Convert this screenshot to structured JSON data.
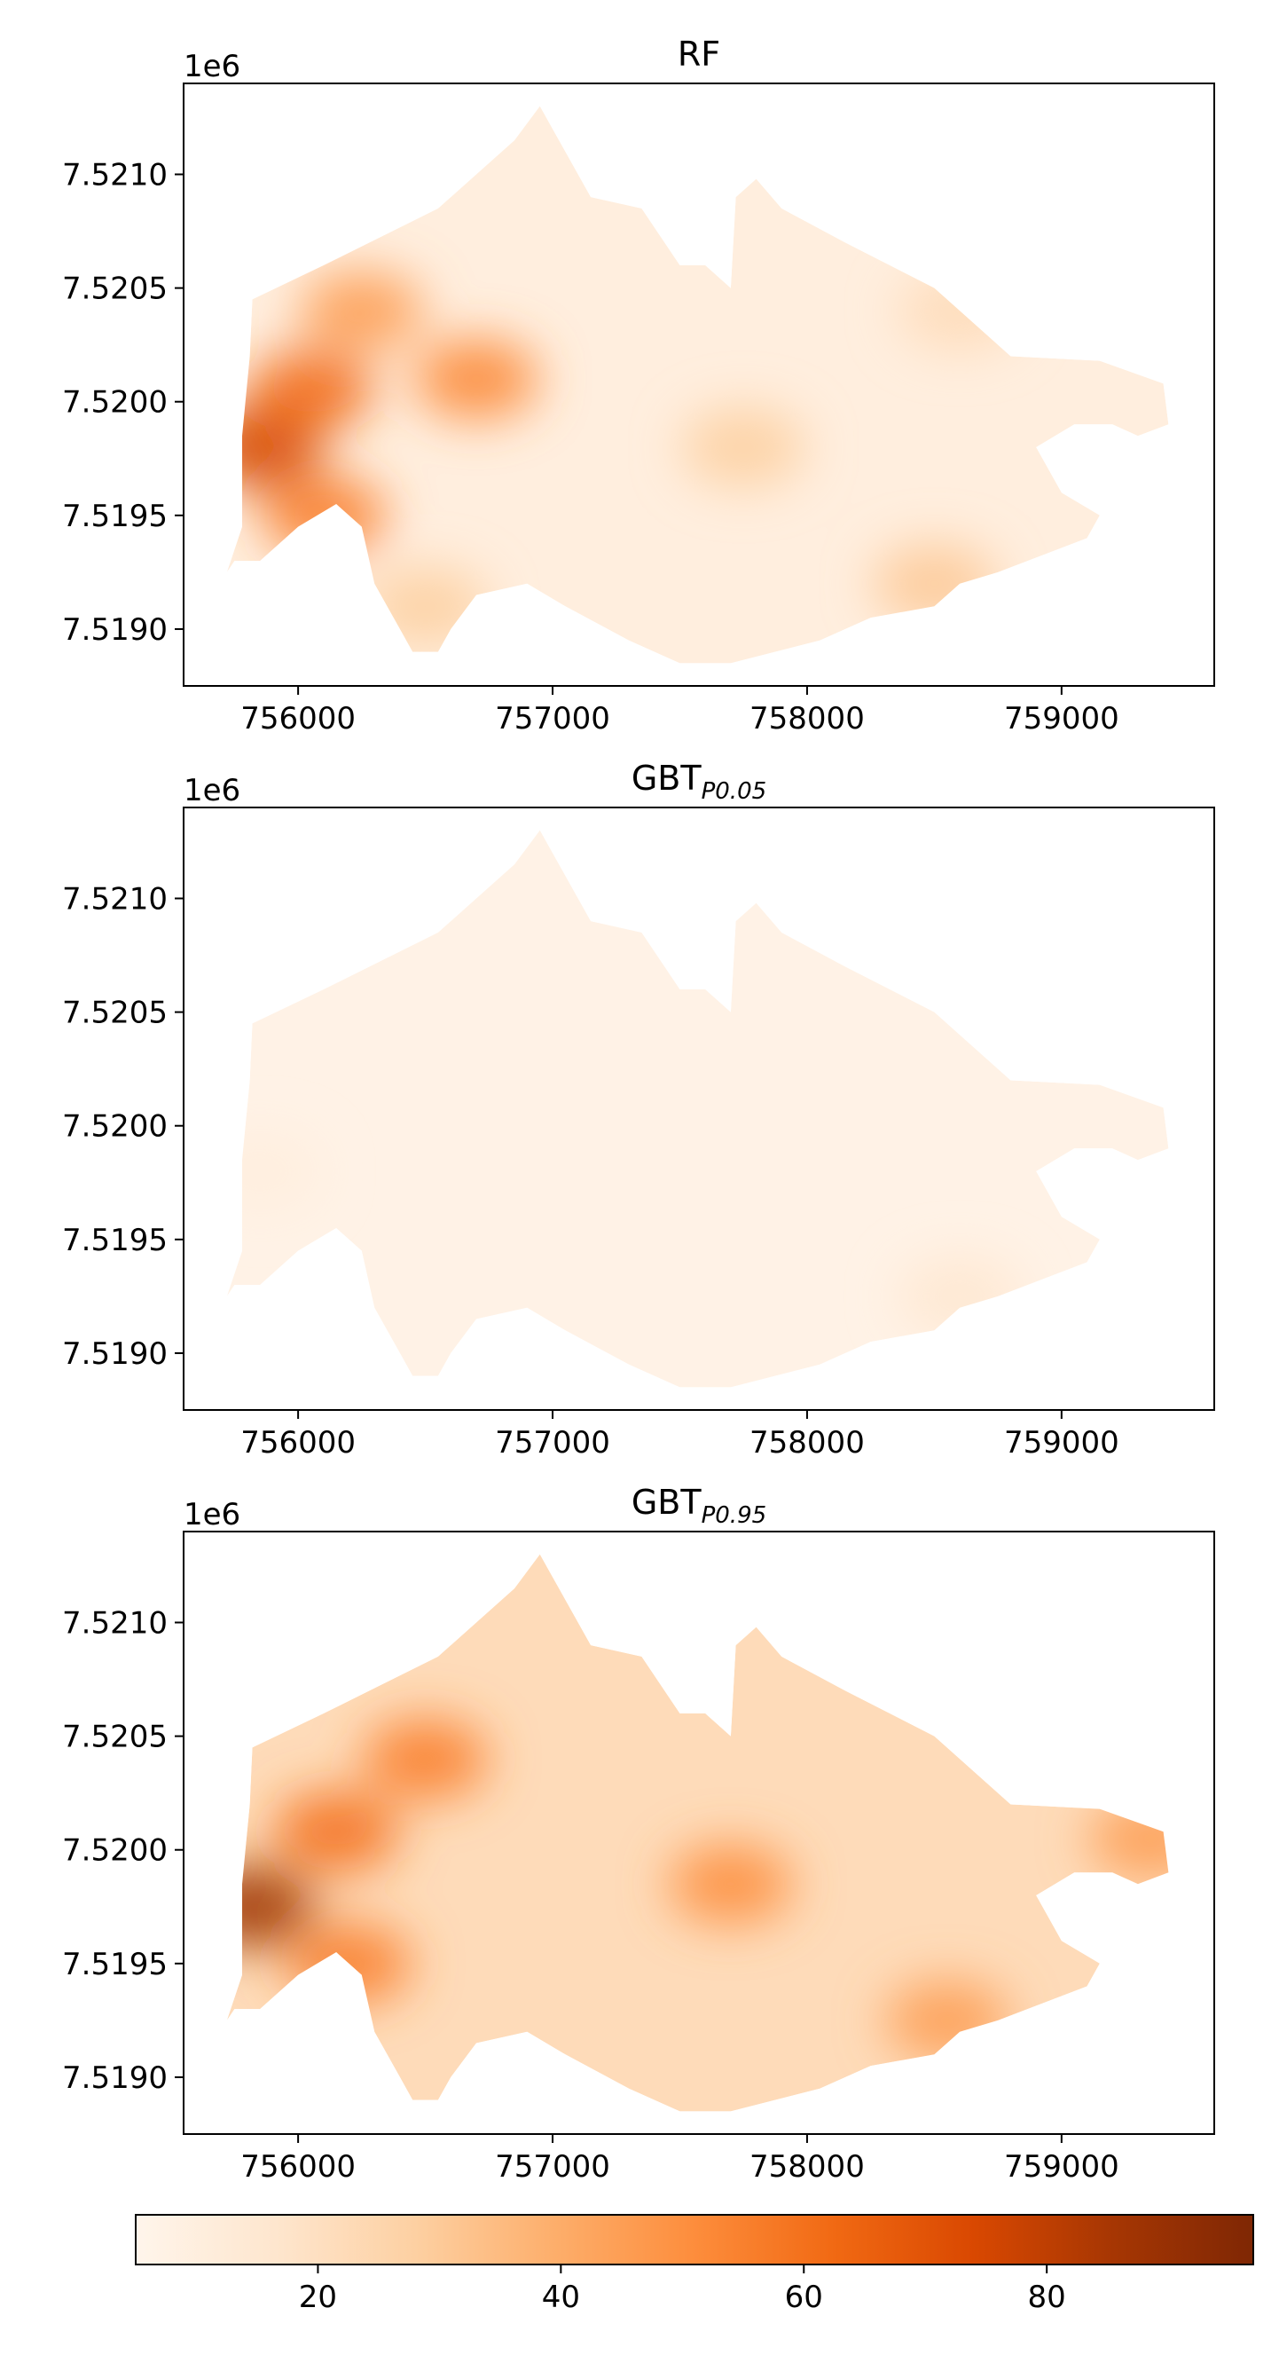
{
  "figure": {
    "colormap": "Oranges",
    "colormap_stops": [
      "#fff5eb",
      "#fee6ce",
      "#fdd0a2",
      "#fdae6b",
      "#fd8d3c",
      "#f16913",
      "#d94801",
      "#a63603",
      "#7f2704"
    ]
  },
  "chart_data": [
    {
      "type": "heatmap",
      "title": "RF",
      "title_subscript": "",
      "x_ticks": [
        "756000",
        "757000",
        "758000",
        "759000"
      ],
      "x_tick_values": [
        756000,
        757000,
        758000,
        759000
      ],
      "y_ticks": [
        "7.5210",
        "7.5205",
        "7.5200",
        "7.5195",
        "7.5190"
      ],
      "y_tick_values": [
        7.521,
        7.5205,
        7.52,
        7.5195,
        7.519
      ],
      "y_offset_label": "1e6",
      "xlim": [
        755550,
        759600
      ],
      "ylim": [
        7.51875,
        7.5214
      ],
      "base_value": 10,
      "hotspots": [
        {
          "x": 755850,
          "y": 7.5198,
          "value": 75
        },
        {
          "x": 756050,
          "y": 7.52005,
          "value": 62
        },
        {
          "x": 756250,
          "y": 7.5204,
          "value": 45
        },
        {
          "x": 756700,
          "y": 7.5201,
          "value": 52
        },
        {
          "x": 756100,
          "y": 7.5195,
          "value": 55
        },
        {
          "x": 757750,
          "y": 7.5198,
          "value": 28
        },
        {
          "x": 758500,
          "y": 7.5192,
          "value": 30
        },
        {
          "x": 758600,
          "y": 7.5204,
          "value": 22
        },
        {
          "x": 756500,
          "y": 7.5191,
          "value": 28
        }
      ]
    },
    {
      "type": "heatmap",
      "title": "GBT",
      "title_subscript": "P0.05",
      "x_ticks": [
        "756000",
        "757000",
        "758000",
        "759000"
      ],
      "x_tick_values": [
        756000,
        757000,
        758000,
        759000
      ],
      "y_ticks": [
        "7.5210",
        "7.5205",
        "7.5200",
        "7.5195",
        "7.5190"
      ],
      "y_tick_values": [
        7.521,
        7.5205,
        7.52,
        7.5195,
        7.519
      ],
      "y_offset_label": "1e6",
      "xlim": [
        755550,
        759600
      ],
      "ylim": [
        7.51875,
        7.5214
      ],
      "base_value": 7,
      "hotspots": [
        {
          "x": 758600,
          "y": 7.51925,
          "value": 15
        },
        {
          "x": 755850,
          "y": 7.5198,
          "value": 10
        }
      ]
    },
    {
      "type": "heatmap",
      "title": "GBT",
      "title_subscript": "P0.95",
      "x_ticks": [
        "756000",
        "757000",
        "758000",
        "759000"
      ],
      "x_tick_values": [
        756000,
        757000,
        758000,
        759000
      ],
      "y_ticks": [
        "7.5210",
        "7.5205",
        "7.5200",
        "7.5195",
        "7.5190"
      ],
      "y_tick_values": [
        7.521,
        7.5205,
        7.52,
        7.5195,
        7.519
      ],
      "y_offset_label": "1e6",
      "xlim": [
        755550,
        759600
      ],
      "ylim": [
        7.51875,
        7.5214
      ],
      "base_value": 22,
      "hotspots": [
        {
          "x": 755820,
          "y": 7.51975,
          "value": 88
        },
        {
          "x": 756150,
          "y": 7.52008,
          "value": 60
        },
        {
          "x": 756500,
          "y": 7.5204,
          "value": 55
        },
        {
          "x": 757700,
          "y": 7.51985,
          "value": 50
        },
        {
          "x": 758550,
          "y": 7.51925,
          "value": 45
        },
        {
          "x": 759350,
          "y": 7.52005,
          "value": 45
        },
        {
          "x": 756200,
          "y": 7.5195,
          "value": 55
        }
      ]
    }
  ],
  "colorbar": {
    "vmin": 5,
    "vmax": 97,
    "ticks": [
      "20",
      "40",
      "60",
      "80"
    ],
    "tick_values": [
      20,
      40,
      60,
      80
    ],
    "orientation": "horizontal"
  }
}
